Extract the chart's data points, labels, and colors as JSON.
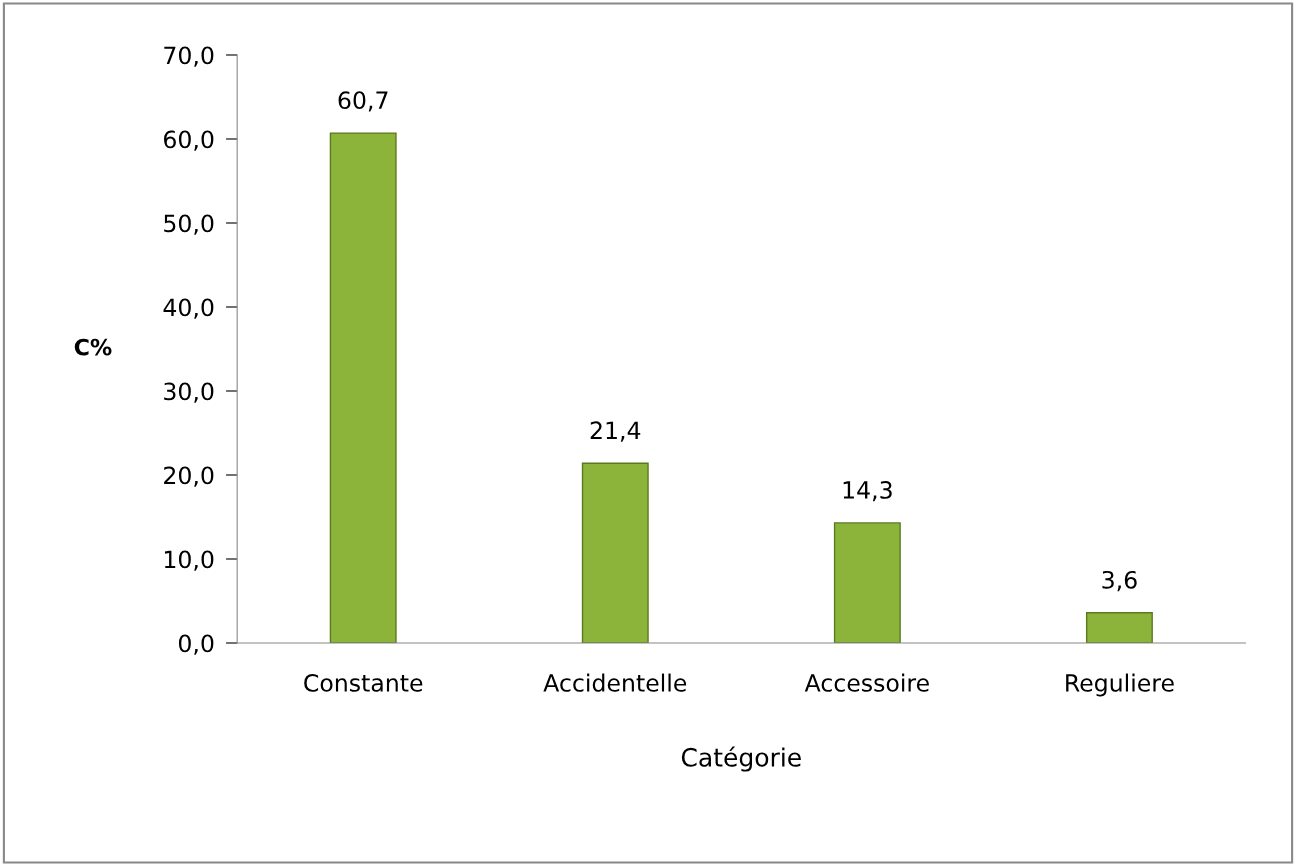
{
  "chart_data": {
    "type": "bar",
    "xlabel": "Catégorie",
    "ylabel": "C%",
    "categories": [
      "Constante",
      "Accidentelle",
      "Accessoire",
      "Reguliere"
    ],
    "values": [
      60.7,
      21.4,
      14.3,
      3.6
    ],
    "value_labels": [
      "60,7",
      "21,4",
      "14,3",
      "3,6"
    ],
    "color": "#8db43a",
    "ylim": [
      0,
      70
    ],
    "yticks": [
      {
        "value": 0,
        "label": "0,0"
      },
      {
        "value": 10,
        "label": "10,0"
      },
      {
        "value": 20,
        "label": "20,0"
      },
      {
        "value": 30,
        "label": "30,0"
      },
      {
        "value": 40,
        "label": "40,0"
      },
      {
        "value": 50,
        "label": "50,0"
      },
      {
        "value": 60,
        "label": "60,0"
      },
      {
        "value": 70,
        "label": "70,0"
      }
    ],
    "grid": false,
    "legend": false
  }
}
